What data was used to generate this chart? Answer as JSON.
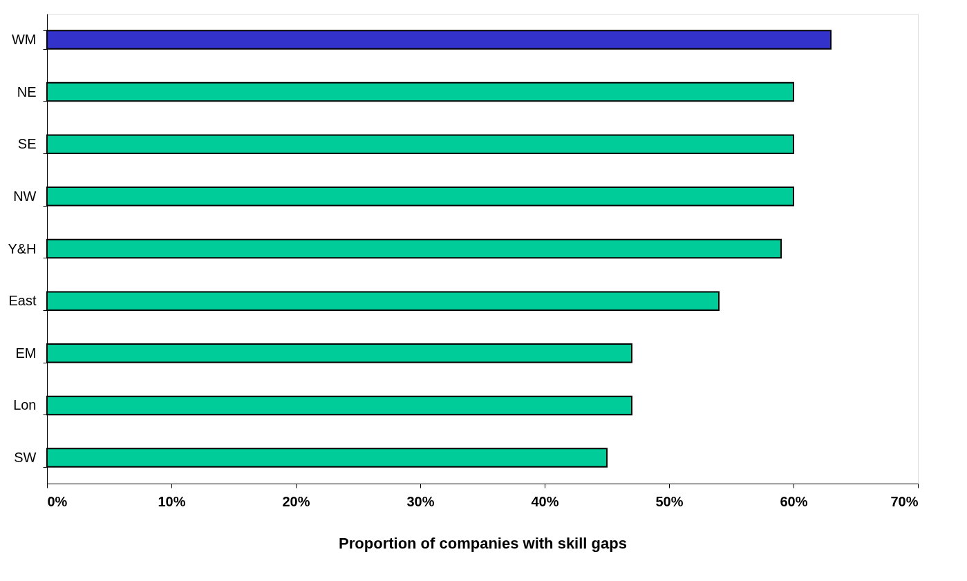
{
  "chart_data": {
    "type": "bar",
    "orientation": "horizontal",
    "xlabel": "Proportion of companies with skill gaps",
    "categories": [
      "WM",
      "NE",
      "SE",
      "NW",
      "Y&H",
      "East",
      "EM",
      "Lon",
      "SW"
    ],
    "values": [
      63,
      60,
      60,
      60,
      59,
      54,
      47,
      47,
      45
    ],
    "colors": [
      "#3333cc",
      "#00cc99",
      "#00cc99",
      "#00cc99",
      "#00cc99",
      "#00cc99",
      "#00cc99",
      "#00cc99",
      "#00cc99"
    ],
    "xlim": [
      0,
      70
    ],
    "xticks": [
      {
        "value": 0,
        "label": "0%"
      },
      {
        "value": 10,
        "label": "10%"
      },
      {
        "value": 20,
        "label": "20%"
      },
      {
        "value": 30,
        "label": "30%"
      },
      {
        "value": 40,
        "label": "40%"
      },
      {
        "value": 50,
        "label": "50%"
      },
      {
        "value": 60,
        "label": "60%"
      },
      {
        "value": 70,
        "label": "70%"
      }
    ],
    "grid": false
  }
}
